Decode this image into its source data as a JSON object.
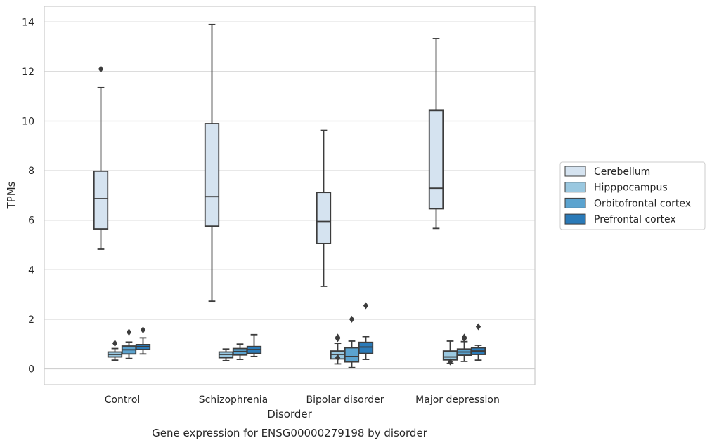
{
  "chart_data": {
    "type": "box",
    "title": "",
    "caption": "Gene expression for ENSG00000279198 by disorder",
    "xlabel": "Disorder",
    "ylabel": "TPMs",
    "ylim": [
      -0.6,
      14.6
    ],
    "yticks": [
      "0",
      "2",
      "4",
      "6",
      "8",
      "10",
      "12",
      "14"
    ],
    "grid": "horizontal",
    "legend_position": "outside-right",
    "categories": [
      "Control",
      "Schizophrenia",
      "Bipolar disorder",
      "Major depression"
    ],
    "series": [
      {
        "name": "Cerebellum",
        "color": "#d5e3f0",
        "boxes": [
          {
            "whislo": 4.83,
            "q1": 5.65,
            "med": 6.87,
            "q3": 7.98,
            "whishi": 11.35,
            "fliers": [
              12.1
            ]
          },
          {
            "whislo": 2.73,
            "q1": 5.76,
            "med": 6.95,
            "q3": 9.9,
            "whishi": 13.9,
            "fliers": []
          },
          {
            "whislo": 3.33,
            "q1": 5.06,
            "med": 5.95,
            "q3": 7.12,
            "whishi": 9.63,
            "fliers": []
          },
          {
            "whislo": 5.67,
            "q1": 6.46,
            "med": 7.29,
            "q3": 10.43,
            "whishi": 13.33,
            "fliers": []
          }
        ]
      },
      {
        "name": "Hipppocampus",
        "color": "#9ac8e0",
        "boxes": [
          {
            "whislo": 0.35,
            "q1": 0.48,
            "med": 0.58,
            "q3": 0.68,
            "whishi": 0.82,
            "fliers": [
              1.03
            ]
          },
          {
            "whislo": 0.33,
            "q1": 0.45,
            "med": 0.58,
            "q3": 0.68,
            "whishi": 0.8,
            "fliers": []
          },
          {
            "whislo": 0.2,
            "q1": 0.4,
            "med": 0.58,
            "q3": 0.72,
            "whishi": 1.03,
            "fliers": [
              0.45,
              1.22,
              1.28
            ]
          },
          {
            "whislo": 0.22,
            "q1": 0.36,
            "med": 0.48,
            "q3": 0.72,
            "whishi": 1.12,
            "fliers": [
              0.28
            ]
          }
        ]
      },
      {
        "name": "Orbitofrontal cortex",
        "color": "#5ba3cf",
        "boxes": [
          {
            "whislo": 0.42,
            "q1": 0.6,
            "med": 0.77,
            "q3": 0.92,
            "whishi": 1.08,
            "fliers": [
              1.48
            ]
          },
          {
            "whislo": 0.38,
            "q1": 0.56,
            "med": 0.7,
            "q3": 0.82,
            "whishi": 1.0,
            "fliers": []
          },
          {
            "whislo": 0.05,
            "q1": 0.28,
            "med": 0.5,
            "q3": 0.85,
            "whishi": 1.12,
            "fliers": [
              2.0
            ]
          },
          {
            "whislo": 0.3,
            "q1": 0.55,
            "med": 0.68,
            "q3": 0.8,
            "whishi": 1.1,
            "fliers": [
              1.22,
              1.28
            ]
          }
        ]
      },
      {
        "name": "Prefrontal cortex",
        "color": "#2a7ab8",
        "boxes": [
          {
            "whislo": 0.6,
            "q1": 0.78,
            "med": 0.9,
            "q3": 0.98,
            "whishi": 1.25,
            "fliers": [
              1.57
            ]
          },
          {
            "whislo": 0.5,
            "q1": 0.62,
            "med": 0.78,
            "q3": 0.9,
            "whishi": 1.38,
            "fliers": []
          },
          {
            "whislo": 0.38,
            "q1": 0.62,
            "med": 0.88,
            "q3": 1.07,
            "whishi": 1.3,
            "fliers": [
              2.55
            ]
          },
          {
            "whislo": 0.35,
            "q1": 0.58,
            "med": 0.72,
            "q3": 0.85,
            "whishi": 0.95,
            "fliers": [
              1.7
            ]
          }
        ]
      }
    ]
  }
}
